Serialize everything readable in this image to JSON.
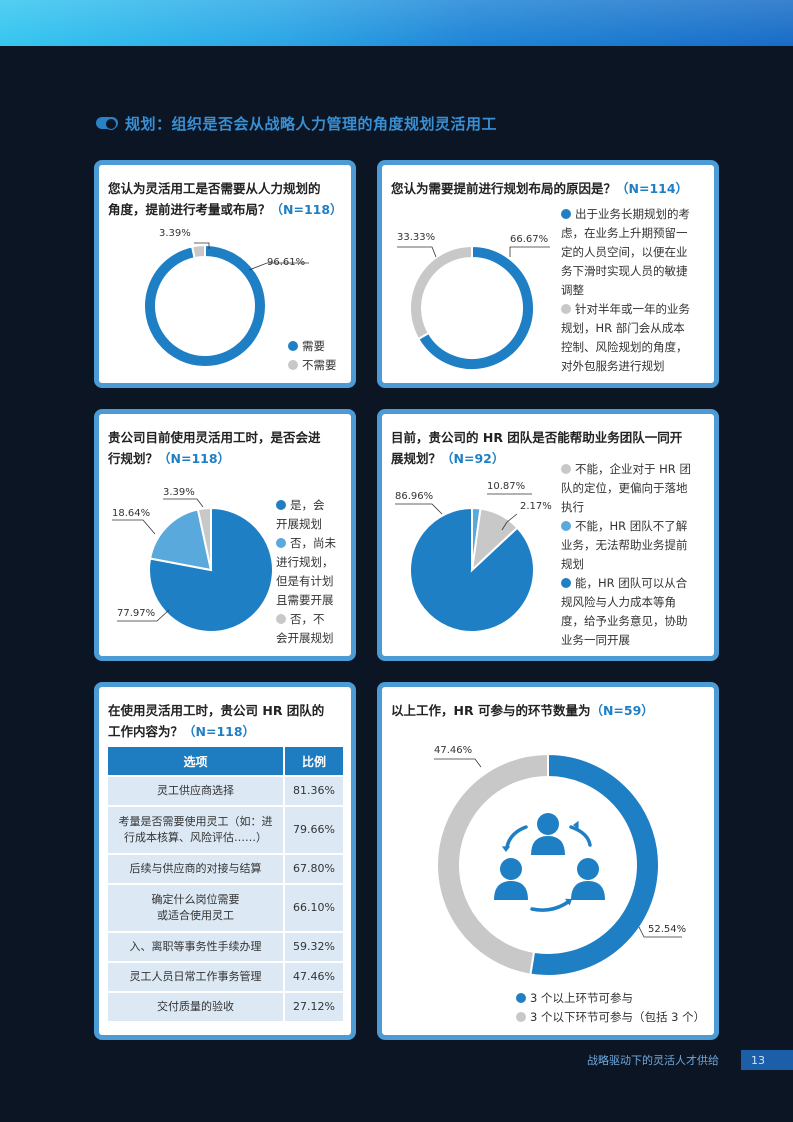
{
  "section_title": "规划：组织是否会从战略人力管理的角度规划灵活用工",
  "colors": {
    "blue": "#1f7fc5",
    "mid": "#5aa9dc",
    "gray": "#c8c8c8"
  },
  "footer": {
    "text": "战略驱动下的灵活人才供给",
    "page": "13"
  },
  "chart_data": [
    {
      "id": "c1",
      "type": "pie",
      "donut": true,
      "title_line1": "您认为灵活用工是否需要从人力规划的",
      "title_line2": "角度，提前进行考量或布局？",
      "n": "（N=118）",
      "slices": [
        {
          "name": "需要",
          "value": 96.61,
          "label": "96.61%"
        },
        {
          "name": "不需要",
          "value": 3.39,
          "label": "3.39%"
        }
      ]
    },
    {
      "id": "c2",
      "type": "pie",
      "donut": true,
      "title_line1": "您认为需要提前进行规划布局的原因是？",
      "n": "（N=114）",
      "slices": [
        {
          "name": "出于业务长期规划的考虑，在业务上升期预留一定的人员空间，以便在业务下滑时实现人员的敏捷调整",
          "value": 66.67,
          "label": "66.67%"
        },
        {
          "name": "针对半年或一年的业务规划，HR部门会从成本控制、风险规划的角度，对外包服务进行规划",
          "value": 33.33,
          "label": "33.33%"
        }
      ],
      "legend_lines": [
        [
          "出于业务长期规划的考",
          "虑，在业务上升期预留一",
          "定的人员空间，以便在业",
          "务下滑时实现人员的敏捷",
          "调整"
        ],
        [
          "针对半年或一年的业务",
          "规划，HR 部门会从成本",
          "控制、风险规划的角度，",
          "对外包服务进行规划"
        ]
      ]
    },
    {
      "id": "c3",
      "type": "pie",
      "title_line1": "贵公司目前使用灵活用工时，是否会进",
      "title_line2": "行规划？",
      "n": "（N=118）",
      "slices": [
        {
          "name": "是，会开展规划",
          "value": 77.97,
          "label": "77.97%"
        },
        {
          "name": "否，尚未进行规划，但是有计划且需要开展",
          "value": 18.64,
          "label": "18.64%"
        },
        {
          "name": "否，不会开展规划",
          "value": 3.39,
          "label": "3.39%"
        }
      ],
      "legend_lines": [
        [
          "是，会",
          "开展规划"
        ],
        [
          "否，尚未",
          "进行规划，",
          "但是有计划",
          "且需要开展"
        ],
        [
          "否，不",
          "会开展规划"
        ]
      ]
    },
    {
      "id": "c4",
      "type": "pie",
      "title_line1": "目前，贵公司的 HR 团队是否能帮助业务团队一同开",
      "title_line2": "展规划？",
      "n": "（N=92）",
      "slices": [
        {
          "name": "能，HR团队可以从合规风险与人力成本等角度，给予业务意见，协助业务一同开展",
          "value": 86.96,
          "label": "86.96%"
        },
        {
          "name": "不能，企业对于HR团队的定位，更偏向于落地执行",
          "value": 10.87,
          "label": "10.87%"
        },
        {
          "name": "不能，HR团队不了解业务，无法帮助业务提前规划",
          "value": 2.17,
          "label": "2.17%"
        }
      ],
      "legend_lines": [
        [
          "不能，企业对于 HR 团",
          "队的定位，更偏向于落地",
          "执行"
        ],
        [
          "不能，HR 团队不了解",
          "业务，无法帮助业务提前",
          "规划"
        ],
        [
          "能，HR 团队可以从合",
          "规风险与人力成本等角",
          "度，给予业务意见，协助",
          "业务一同开展"
        ]
      ]
    },
    {
      "id": "t5",
      "type": "table",
      "title_line1": "在使用灵活用工时，贵公司 HR 团队的",
      "title_line2": "工作内容为？",
      "n": "（N=118）",
      "columns": [
        "选项",
        "比例"
      ],
      "rows": [
        {
          "option_lines": [
            "灵工供应商选择"
          ],
          "value": 81.36,
          "pct": "81.36%"
        },
        {
          "option_lines": [
            "考量是否需要使用灵工（如：进",
            "行成本核算、风险评估……）"
          ],
          "value": 79.66,
          "pct": "79.66%"
        },
        {
          "option_lines": [
            "后续与供应商的对接与结算"
          ],
          "value": 67.8,
          "pct": "67.80%"
        },
        {
          "option_lines": [
            "确定什么岗位需要",
            "或适合使用灵工"
          ],
          "value": 66.1,
          "pct": "66.10%"
        },
        {
          "option_lines": [
            "入、离职等事务性手续办理"
          ],
          "value": 59.32,
          "pct": "59.32%"
        },
        {
          "option_lines": [
            "灵工人员日常工作事务管理"
          ],
          "value": 47.46,
          "pct": "47.46%"
        },
        {
          "option_lines": [
            "交付质量的验收"
          ],
          "value": 27.12,
          "pct": "27.12%"
        }
      ]
    },
    {
      "id": "c6",
      "type": "pie",
      "donut": true,
      "title_line1": "以上工作，HR 可参与的环节数量为",
      "n": "（N=59）",
      "slices": [
        {
          "name": "3 个以上环节可参与",
          "value": 52.54,
          "label": "52.54%"
        },
        {
          "name": "3 个以下环节可参与（包括 3 个）",
          "value": 47.46,
          "label": "47.46%"
        }
      ]
    }
  ]
}
